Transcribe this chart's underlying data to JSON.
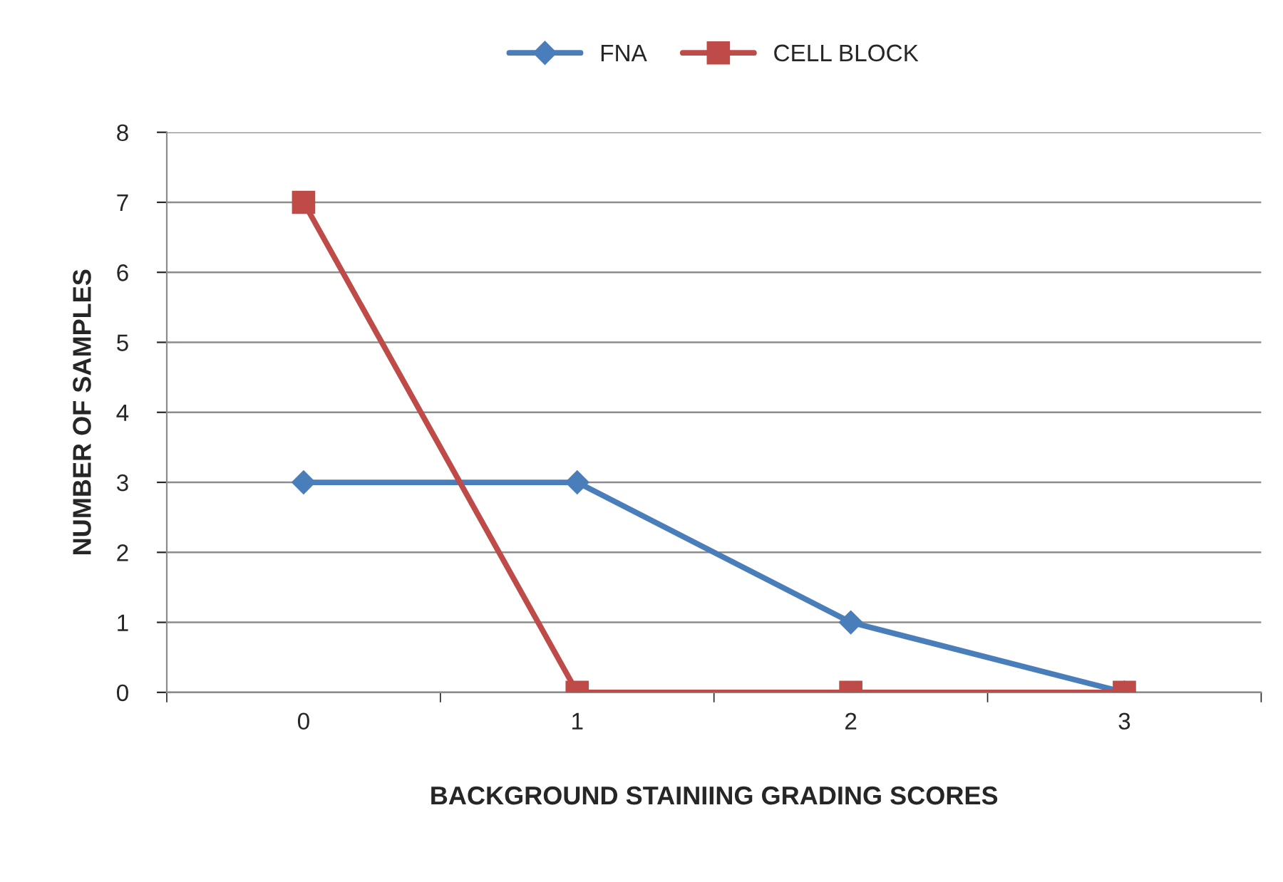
{
  "chart_data": {
    "type": "line",
    "xlabel": "BACKGROUND STAINIING GRADING SCORES",
    "ylabel": "NUMBER OF SAMPLES",
    "categories": [
      "0",
      "1",
      "2",
      "3"
    ],
    "series": [
      {
        "name": "FNA",
        "color": "#4a7ebb",
        "marker": "diamond",
        "values": [
          3,
          3,
          1,
          0
        ]
      },
      {
        "name": "CELL BLOCK",
        "color": "#be4b48",
        "marker": "square",
        "values": [
          7,
          0,
          0,
          0
        ]
      }
    ],
    "ylim": [
      0,
      8
    ],
    "yticks": [
      0,
      1,
      2,
      3,
      4,
      5,
      6,
      7,
      8
    ],
    "grid": "y",
    "legend": "top",
    "line_style": "solid"
  }
}
